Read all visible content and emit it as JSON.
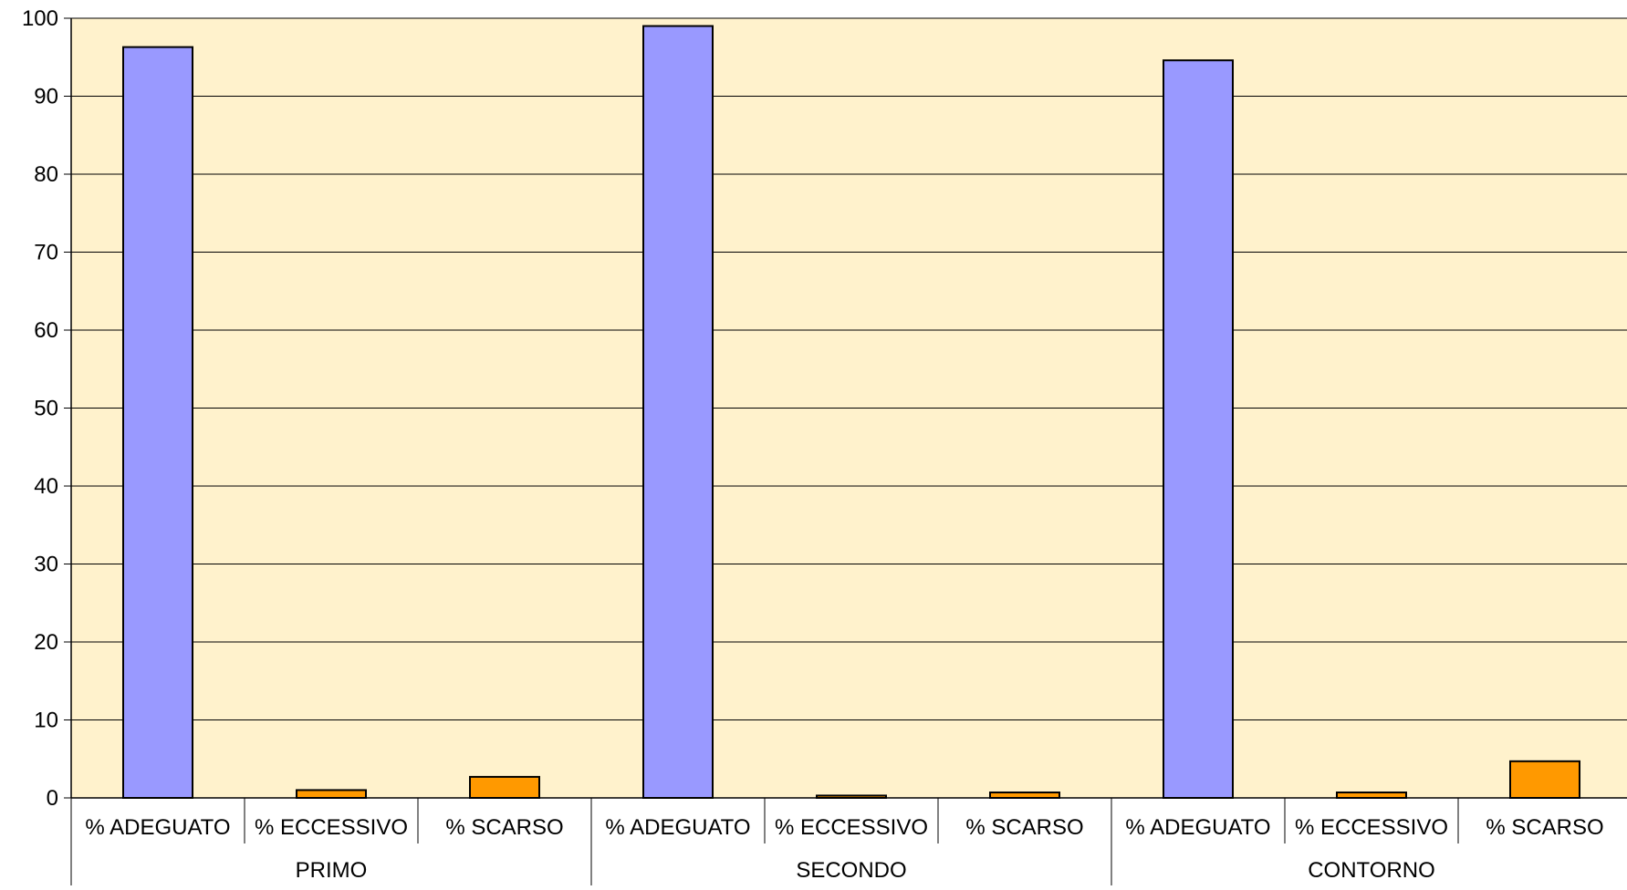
{
  "chart_data": {
    "type": "bar",
    "title": "",
    "xlabel": "",
    "ylabel": "",
    "ylim": [
      0,
      100
    ],
    "yticks": [
      "0",
      "10",
      "20",
      "30",
      "40",
      "50",
      "60",
      "70",
      "80",
      "90",
      "100"
    ],
    "grid": true,
    "legend": "none",
    "groups": [
      {
        "name": "PRIMO",
        "bars": [
          {
            "label": "% ADEGUATO",
            "value": 96.3
          },
          {
            "label": "% ECCESSIVO",
            "value": 1.0
          },
          {
            "label": "% SCARSO",
            "value": 2.7
          }
        ]
      },
      {
        "name": "SECONDO",
        "bars": [
          {
            "label": "% ADEGUATO",
            "value": 99.0
          },
          {
            "label": "% ECCESSIVO",
            "value": 0.3
          },
          {
            "label": "% SCARSO",
            "value": 0.7
          }
        ]
      },
      {
        "name": "CONTORNO",
        "bars": [
          {
            "label": "% ADEGUATO",
            "value": 94.6
          },
          {
            "label": "% ECCESSIVO",
            "value": 0.7
          },
          {
            "label": "% SCARSO",
            "value": 4.7
          }
        ]
      }
    ],
    "colors": {
      "adeguato": "#9999FF",
      "other": "#FF9900",
      "plot_background": "#FFF2CC",
      "gridline": "#000000"
    }
  }
}
